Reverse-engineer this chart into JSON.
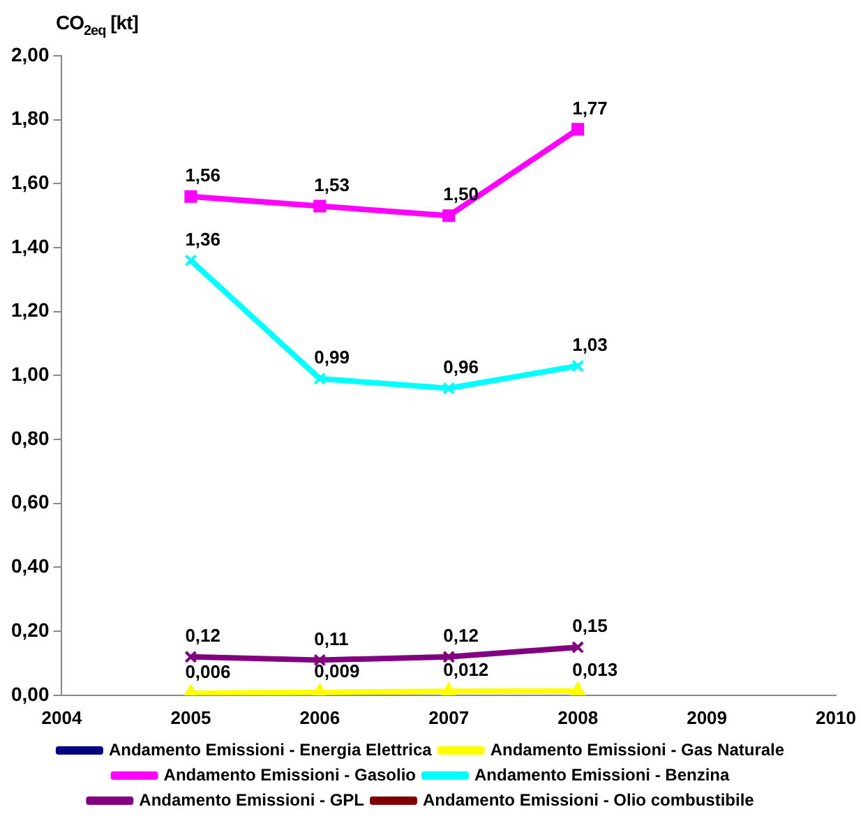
{
  "chart_data": {
    "type": "line",
    "ylabel": "CO$_{2eq}$ [kt]",
    "xlim": [
      2004,
      2010
    ],
    "xticks": [
      2004,
      2005,
      2006,
      2007,
      2008,
      2009,
      2010
    ],
    "ylim": [
      0,
      2
    ],
    "yticks": [
      {
        "value": 0,
        "label": "0,00"
      },
      {
        "value": 0.2,
        "label": "0,20"
      },
      {
        "value": 0.4,
        "label": "0,40"
      },
      {
        "value": 0.6,
        "label": "0,60"
      },
      {
        "value": 0.8,
        "label": "0,80"
      },
      {
        "value": 1,
        "label": "1,00"
      },
      {
        "value": 1.2,
        "label": "1,20"
      },
      {
        "value": 1.4,
        "label": "1,40"
      },
      {
        "value": 1.6,
        "label": "1,60"
      },
      {
        "value": 1.8,
        "label": "1,80"
      },
      {
        "value": 2,
        "label": "2,00"
      }
    ],
    "x": [
      2005,
      2006,
      2007,
      2008
    ],
    "grid": false,
    "legend": "bottom",
    "series": [
      {
        "name": "Andamento Emissioni - Energia Elettrica",
        "color": "#000080",
        "marker": "diamond",
        "values": [
          null,
          null,
          null,
          null
        ]
      },
      {
        "name": "Andamento Emissioni - Gas Naturale",
        "color": "#ffff00",
        "marker": "triangle",
        "values": [
          0.006,
          0.009,
          0.012,
          0.013
        ],
        "value_labels": [
          "0,006",
          "0,009",
          "0,012",
          "0,013"
        ]
      },
      {
        "name": "Andamento Emissioni - Gasolio",
        "color": "#ff00ff",
        "marker": "square",
        "values": [
          1.56,
          1.53,
          1.5,
          1.77
        ],
        "value_labels": [
          "1,56",
          "1,53",
          "1,50",
          "1,77"
        ]
      },
      {
        "name": "Andamento Emissioni - Benzina",
        "color": "#00ffff",
        "marker": "cross",
        "values": [
          1.36,
          0.99,
          0.96,
          1.03
        ],
        "value_labels": [
          "1,36",
          "0,99",
          "0,96",
          "1,03"
        ]
      },
      {
        "name": "Andamento Emissioni - GPL",
        "color": "#800080",
        "marker": "cross",
        "values": [
          0.12,
          0.11,
          0.12,
          0.15
        ],
        "value_labels": [
          "0,12",
          "0,11",
          "0,12",
          "0,15"
        ]
      },
      {
        "name": "Andamento Emissioni - Olio combustibile",
        "color": "#800000",
        "marker": "circle",
        "values": [
          null,
          null,
          null,
          null
        ]
      }
    ]
  }
}
